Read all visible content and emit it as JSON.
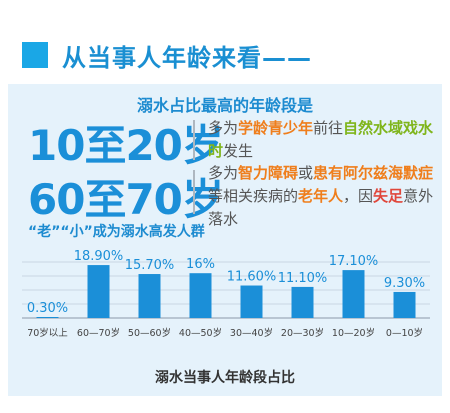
{
  "header": {
    "title": "从当事人年龄来看——"
  },
  "card": {
    "subhead": "溺水占比最高的年龄段是",
    "block1": {
      "age": "10至20岁",
      "p1": "多为",
      "h1": "学龄青少年",
      "p2": "前往",
      "h2": "自然水域戏水时",
      "p3": "发生"
    },
    "block2": {
      "age": "60至70岁",
      "p1": "多为",
      "h1": "智力障碍",
      "p2": "或",
      "h2": "患有阿尔兹海默症",
      "p3": "等相关疾病的",
      "h3": "老年人",
      "p4": "，因",
      "h4": "失足",
      "p5": "意外落水"
    },
    "tagline": "“老”“小”成为溺水高发人群"
  },
  "chart_data": {
    "type": "bar",
    "title": "",
    "xlabel": "溺水当事人年龄段占比",
    "ylabel": "",
    "categories": [
      "70岁以上",
      "60—70岁",
      "50—60岁",
      "40—50岁",
      "30—40岁",
      "20—30岁",
      "10—20岁",
      "0—10岁"
    ],
    "values": [
      0.3,
      18.9,
      15.7,
      16,
      11.6,
      11.1,
      17.1,
      9.3
    ],
    "value_labels": [
      "0.30%",
      "18.90%",
      "15.70%",
      "16%",
      "11.60%",
      "11.10%",
      "17.10%",
      "9.30%"
    ],
    "ylim": [
      0,
      20
    ],
    "grid": true,
    "bar_color": "#1b8fd8",
    "label_color": "#1b8fd8"
  }
}
